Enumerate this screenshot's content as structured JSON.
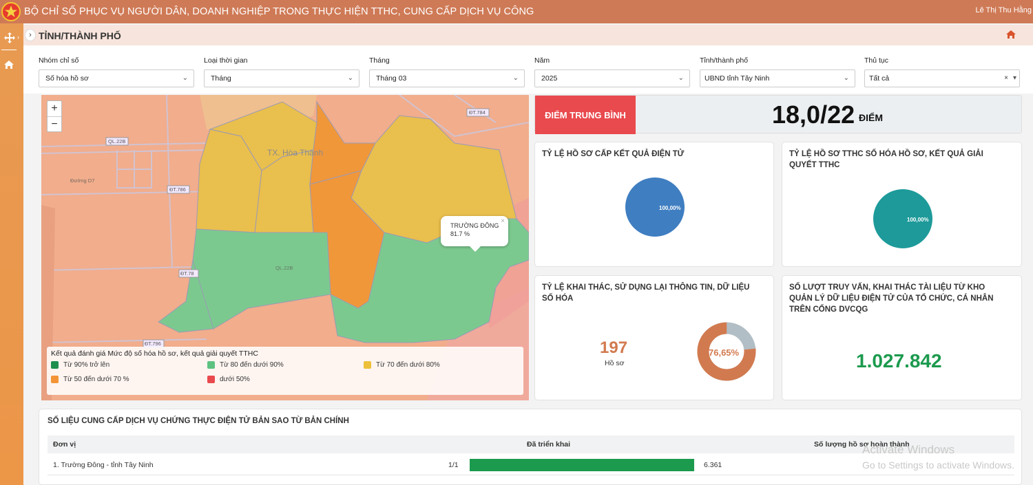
{
  "header": {
    "title": "BỘ CHỈ SỐ PHỤC VỤ NGƯỜI DÂN, DOANH NGHIỆP TRONG THỰC HIỆN TTHC, CUNG CẤP DỊCH VỤ CÔNG",
    "user": "Lê Thị Thu Hằng"
  },
  "page": {
    "title": "TỈNH/THÀNH PHỐ"
  },
  "filters": [
    {
      "label": "Nhóm chỉ số",
      "value": "Số hóa hồ sơ"
    },
    {
      "label": "Loại thời gian",
      "value": "Tháng"
    },
    {
      "label": "Tháng",
      "value": "Tháng 03"
    },
    {
      "label": "Năm",
      "value": "2025"
    },
    {
      "label": "Tỉnh/thành phố",
      "value": "UBND tỉnh Tây Ninh"
    },
    {
      "label": "Thủ tục",
      "value": "Tất cả"
    }
  ],
  "map": {
    "labels": {
      "town": "TX. Hòa Thành",
      "road_ql22b": "QL.22B",
      "road_dt784": "ĐT.784",
      "road_dt786": "ĐT.786",
      "road_dt78": "ĐT.78",
      "road_dt796": "ĐT.796",
      "road_ql22b_2": "QL.22B",
      "road_duong": "Đường D7"
    },
    "popup": {
      "name": "TRƯỜNG ĐÔNG",
      "value": "81.7 %"
    },
    "legend": {
      "title": "Kết quả đánh giá Mức độ số hóa hồ sơ, kết quả giải quyết TTHC",
      "items": [
        {
          "label": "Từ 90% trở lên",
          "color": "#1e8f4e"
        },
        {
          "label": "Từ 80 đến dưới 90%",
          "color": "#5dc281"
        },
        {
          "label": "Từ 70 đến dưới 80%",
          "color": "#ecc03a"
        },
        {
          "label": "Từ 50 đến dưới 70 %",
          "color": "#f39536"
        },
        {
          "label": "dưới 50%",
          "color": "#e94a4e"
        }
      ]
    }
  },
  "score": {
    "label": "ĐIỂM TRUNG BÌNH",
    "value": "18,0/22",
    "unit": "ĐIỂM"
  },
  "cards": {
    "electronic_results": {
      "title": "TỶ LỆ HỒ SƠ CẤP KẾT QUẢ ĐIỆN TỬ",
      "pie_label": "100,00%",
      "value": 100,
      "color": "#3f7ec1"
    },
    "digitized": {
      "title": "TỶ LỆ HỒ SƠ TTHC SỐ HÓA HỒ SƠ, KẾT QUẢ GIẢI QUYẾT TTHC",
      "pie_label": "100,00%",
      "value": 100,
      "color": "#1e9a9a"
    },
    "reuse": {
      "title": "TỶ LỆ KHAI THÁC, SỬ DỤNG LẠI THÔNG TIN, DỮ LIỆU SỐ HÓA",
      "count": "197",
      "count_label": "Hồ sơ",
      "donut_label": "76,65%",
      "value": 76.65,
      "color": "#d27a4f",
      "rest_color": "#b2bec5"
    },
    "queries": {
      "title": "SỐ LƯỢT TRUY VẤN, KHAI THÁC TÀI LIỆU TỪ KHO QUẢN LÝ DỮ LIỆU ĐIỆN TỬ CỦA TỔ CHỨC, CÁ NHÂN TRÊN CỔNG DVCQG",
      "value": "1.027.842",
      "color": "#1c9a4e"
    }
  },
  "table": {
    "title": "SỐ LIỆU CUNG CẤP DỊCH VỤ CHỨNG THỰC ĐIỆN TỬ BẢN SAO TỪ BẢN CHÍNH",
    "headers": [
      "Đơn vị",
      "Đã triển khai",
      "Số lượng hồ sơ hoàn thành"
    ],
    "rows": [
      {
        "unit": "1. Trường Đông - tỉnh Tây Ninh",
        "deployed": "1/1",
        "progress": 1.0,
        "completed": "6.361"
      }
    ]
  },
  "watermark": {
    "line1": "Activate Windows",
    "line2": "Go to Settings to activate Windows."
  }
}
